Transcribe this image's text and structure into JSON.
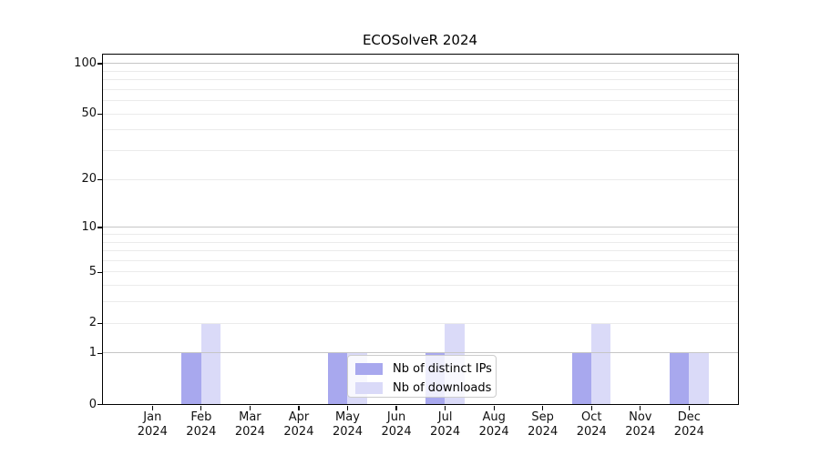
{
  "chart_data": {
    "type": "bar",
    "title": "ECOSolveR 2024",
    "categories": [
      "Jan",
      "Feb",
      "Mar",
      "Apr",
      "May",
      "Jun",
      "Jul",
      "Aug",
      "Sep",
      "Oct",
      "Nov",
      "Dec"
    ],
    "category_year": "2024",
    "series": [
      {
        "name": "Nb of distinct IPs",
        "color": "#a8a8ee",
        "values": [
          0,
          1,
          0,
          0,
          1,
          0,
          1,
          0,
          0,
          1,
          0,
          1
        ]
      },
      {
        "name": "Nb of downloads",
        "color": "#dadaf8",
        "values": [
          0,
          2,
          0,
          0,
          1,
          0,
          2,
          0,
          0,
          2,
          0,
          1
        ]
      }
    ],
    "xlabel": "",
    "ylabel": "",
    "y_axis": {
      "scale": "log1p",
      "ticks": [
        0,
        1,
        2,
        5,
        10,
        20,
        50,
        100
      ],
      "limit": [
        0,
        100
      ],
      "major_gridlines": [
        1,
        10,
        100
      ],
      "minor_gridlines": [
        2,
        3,
        4,
        5,
        6,
        7,
        8,
        9,
        20,
        30,
        40,
        50,
        60,
        70,
        80,
        90
      ]
    },
    "legend": {
      "position": "inside-bottom-center",
      "entries": [
        "Nb of distinct IPs",
        "Nb of downloads"
      ]
    },
    "grid": true
  },
  "colors": {
    "background": "#ffffff",
    "axis": "#000000",
    "grid_major": "#c6c6c6",
    "grid_minor": "#ebebeb",
    "tick_text": "#111111",
    "legend_border": "#cccccc",
    "bar_distinct_ips": "#a8a8ee",
    "bar_downloads": "#dadaf8"
  }
}
